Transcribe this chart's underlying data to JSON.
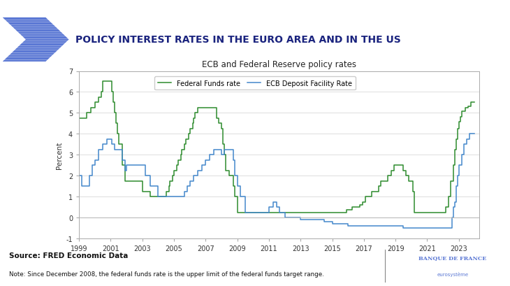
{
  "title_main": "POLICY INTEREST RATES IN THE EURO AREA AND IN THE US",
  "chart_title": "ECB and Federal Reserve policy rates",
  "ylabel": "Percent",
  "source_text": "Source: FRED Economic Data",
  "note_text": "Note: Since December 2008, the federal funds rate is the upper limit of the federal funds target range.",
  "fed_label": "Federal Funds rate",
  "ecb_label": "ECB Deposit Facility Rate",
  "fed_color": "#2e8b2e",
  "ecb_color": "#4488cc",
  "fig_bg": "#ffffff",
  "chart_bg": "#ffffff",
  "title_color": "#1a237e",
  "arrow_color": "#5b78d4",
  "fed_data": [
    [
      1999.0,
      4.75
    ],
    [
      1999.5,
      5.0
    ],
    [
      1999.75,
      5.25
    ],
    [
      2000.0,
      5.5
    ],
    [
      2000.25,
      5.75
    ],
    [
      2000.42,
      6.0
    ],
    [
      2000.5,
      6.5
    ],
    [
      2001.0,
      6.5
    ],
    [
      2001.08,
      6.0
    ],
    [
      2001.17,
      5.5
    ],
    [
      2001.25,
      5.0
    ],
    [
      2001.33,
      4.5
    ],
    [
      2001.42,
      4.0
    ],
    [
      2001.5,
      3.5
    ],
    [
      2001.75,
      2.5
    ],
    [
      2001.92,
      1.75
    ],
    [
      2002.0,
      1.75
    ],
    [
      2002.5,
      1.75
    ],
    [
      2003.0,
      1.25
    ],
    [
      2003.5,
      1.0
    ],
    [
      2004.0,
      1.0
    ],
    [
      2004.5,
      1.25
    ],
    [
      2004.67,
      1.5
    ],
    [
      2004.75,
      1.75
    ],
    [
      2004.92,
      2.0
    ],
    [
      2005.0,
      2.25
    ],
    [
      2005.17,
      2.5
    ],
    [
      2005.25,
      2.75
    ],
    [
      2005.42,
      3.0
    ],
    [
      2005.5,
      3.25
    ],
    [
      2005.67,
      3.5
    ],
    [
      2005.75,
      3.75
    ],
    [
      2005.92,
      4.0
    ],
    [
      2006.0,
      4.25
    ],
    [
      2006.17,
      4.5
    ],
    [
      2006.25,
      4.75
    ],
    [
      2006.33,
      5.0
    ],
    [
      2006.5,
      5.25
    ],
    [
      2006.75,
      5.25
    ],
    [
      2007.0,
      5.25
    ],
    [
      2007.5,
      5.25
    ],
    [
      2007.67,
      4.75
    ],
    [
      2007.83,
      4.5
    ],
    [
      2008.0,
      4.25
    ],
    [
      2008.08,
      3.5
    ],
    [
      2008.17,
      3.0
    ],
    [
      2008.25,
      2.25
    ],
    [
      2008.5,
      2.0
    ],
    [
      2008.75,
      1.5
    ],
    [
      2008.83,
      1.0
    ],
    [
      2009.0,
      0.25
    ],
    [
      2009.5,
      0.25
    ],
    [
      2010.0,
      0.25
    ],
    [
      2011.0,
      0.25
    ],
    [
      2012.0,
      0.25
    ],
    [
      2013.0,
      0.25
    ],
    [
      2014.0,
      0.25
    ],
    [
      2015.0,
      0.25
    ],
    [
      2015.92,
      0.375
    ],
    [
      2016.25,
      0.5
    ],
    [
      2016.5,
      0.5
    ],
    [
      2016.75,
      0.625
    ],
    [
      2016.92,
      0.75
    ],
    [
      2017.08,
      1.0
    ],
    [
      2017.5,
      1.25
    ],
    [
      2017.92,
      1.5
    ],
    [
      2018.08,
      1.75
    ],
    [
      2018.25,
      1.75
    ],
    [
      2018.5,
      2.0
    ],
    [
      2018.75,
      2.25
    ],
    [
      2018.92,
      2.5
    ],
    [
      2019.0,
      2.5
    ],
    [
      2019.5,
      2.25
    ],
    [
      2019.67,
      2.0
    ],
    [
      2019.83,
      1.75
    ],
    [
      2020.0,
      1.75
    ],
    [
      2020.08,
      1.25
    ],
    [
      2020.17,
      0.25
    ],
    [
      2020.5,
      0.25
    ],
    [
      2021.0,
      0.25
    ],
    [
      2022.0,
      0.25
    ],
    [
      2022.17,
      0.5
    ],
    [
      2022.33,
      1.0
    ],
    [
      2022.5,
      1.75
    ],
    [
      2022.67,
      2.5
    ],
    [
      2022.75,
      3.25
    ],
    [
      2022.83,
      3.75
    ],
    [
      2022.92,
      4.25
    ],
    [
      2023.0,
      4.58
    ],
    [
      2023.08,
      4.83
    ],
    [
      2023.17,
      5.08
    ],
    [
      2023.42,
      5.25
    ],
    [
      2023.58,
      5.33
    ],
    [
      2023.75,
      5.5
    ],
    [
      2024.0,
      5.5
    ]
  ],
  "ecb_data": [
    [
      1999.0,
      2.0
    ],
    [
      1999.17,
      1.5
    ],
    [
      1999.42,
      1.5
    ],
    [
      1999.67,
      2.0
    ],
    [
      1999.83,
      2.5
    ],
    [
      2000.0,
      2.75
    ],
    [
      2000.25,
      3.25
    ],
    [
      2000.5,
      3.5
    ],
    [
      2000.75,
      3.75
    ],
    [
      2001.0,
      3.75
    ],
    [
      2001.08,
      3.5
    ],
    [
      2001.25,
      3.25
    ],
    [
      2001.42,
      3.25
    ],
    [
      2001.5,
      3.25
    ],
    [
      2001.75,
      2.75
    ],
    [
      2001.92,
      2.25
    ],
    [
      2002.0,
      2.5
    ],
    [
      2002.5,
      2.5
    ],
    [
      2003.0,
      2.5
    ],
    [
      2003.17,
      2.0
    ],
    [
      2003.5,
      1.5
    ],
    [
      2004.0,
      1.0
    ],
    [
      2004.5,
      1.0
    ],
    [
      2005.0,
      1.0
    ],
    [
      2005.67,
      1.25
    ],
    [
      2005.83,
      1.5
    ],
    [
      2006.0,
      1.75
    ],
    [
      2006.25,
      2.0
    ],
    [
      2006.5,
      2.25
    ],
    [
      2006.75,
      2.5
    ],
    [
      2007.0,
      2.75
    ],
    [
      2007.25,
      3.0
    ],
    [
      2007.5,
      3.25
    ],
    [
      2008.0,
      3.0
    ],
    [
      2008.17,
      3.25
    ],
    [
      2008.5,
      3.25
    ],
    [
      2008.75,
      2.75
    ],
    [
      2008.83,
      2.0
    ],
    [
      2009.0,
      1.5
    ],
    [
      2009.17,
      1.0
    ],
    [
      2009.5,
      0.25
    ],
    [
      2010.0,
      0.25
    ],
    [
      2011.0,
      0.5
    ],
    [
      2011.25,
      0.75
    ],
    [
      2011.5,
      0.5
    ],
    [
      2011.67,
      0.25
    ],
    [
      2012.0,
      0.0
    ],
    [
      2012.5,
      0.0
    ],
    [
      2013.0,
      -0.1
    ],
    [
      2014.0,
      -0.1
    ],
    [
      2014.5,
      -0.2
    ],
    [
      2015.0,
      -0.3
    ],
    [
      2016.0,
      -0.4
    ],
    [
      2019.5,
      -0.5
    ],
    [
      2022.0,
      -0.5
    ],
    [
      2022.42,
      -0.5
    ],
    [
      2022.58,
      0.0
    ],
    [
      2022.67,
      0.5
    ],
    [
      2022.75,
      0.75
    ],
    [
      2022.83,
      1.5
    ],
    [
      2022.92,
      2.0
    ],
    [
      2023.0,
      2.5
    ],
    [
      2023.17,
      3.0
    ],
    [
      2023.33,
      3.5
    ],
    [
      2023.5,
      3.75
    ],
    [
      2023.67,
      4.0
    ],
    [
      2024.0,
      4.0
    ]
  ],
  "xlim": [
    1999,
    2024.3
  ],
  "ylim": [
    -1,
    7
  ],
  "yticks": [
    -1,
    0,
    1,
    2,
    3,
    4,
    5,
    6,
    7
  ],
  "xticks": [
    1999,
    2001,
    2003,
    2005,
    2007,
    2009,
    2011,
    2013,
    2015,
    2017,
    2019,
    2021,
    2023
  ]
}
